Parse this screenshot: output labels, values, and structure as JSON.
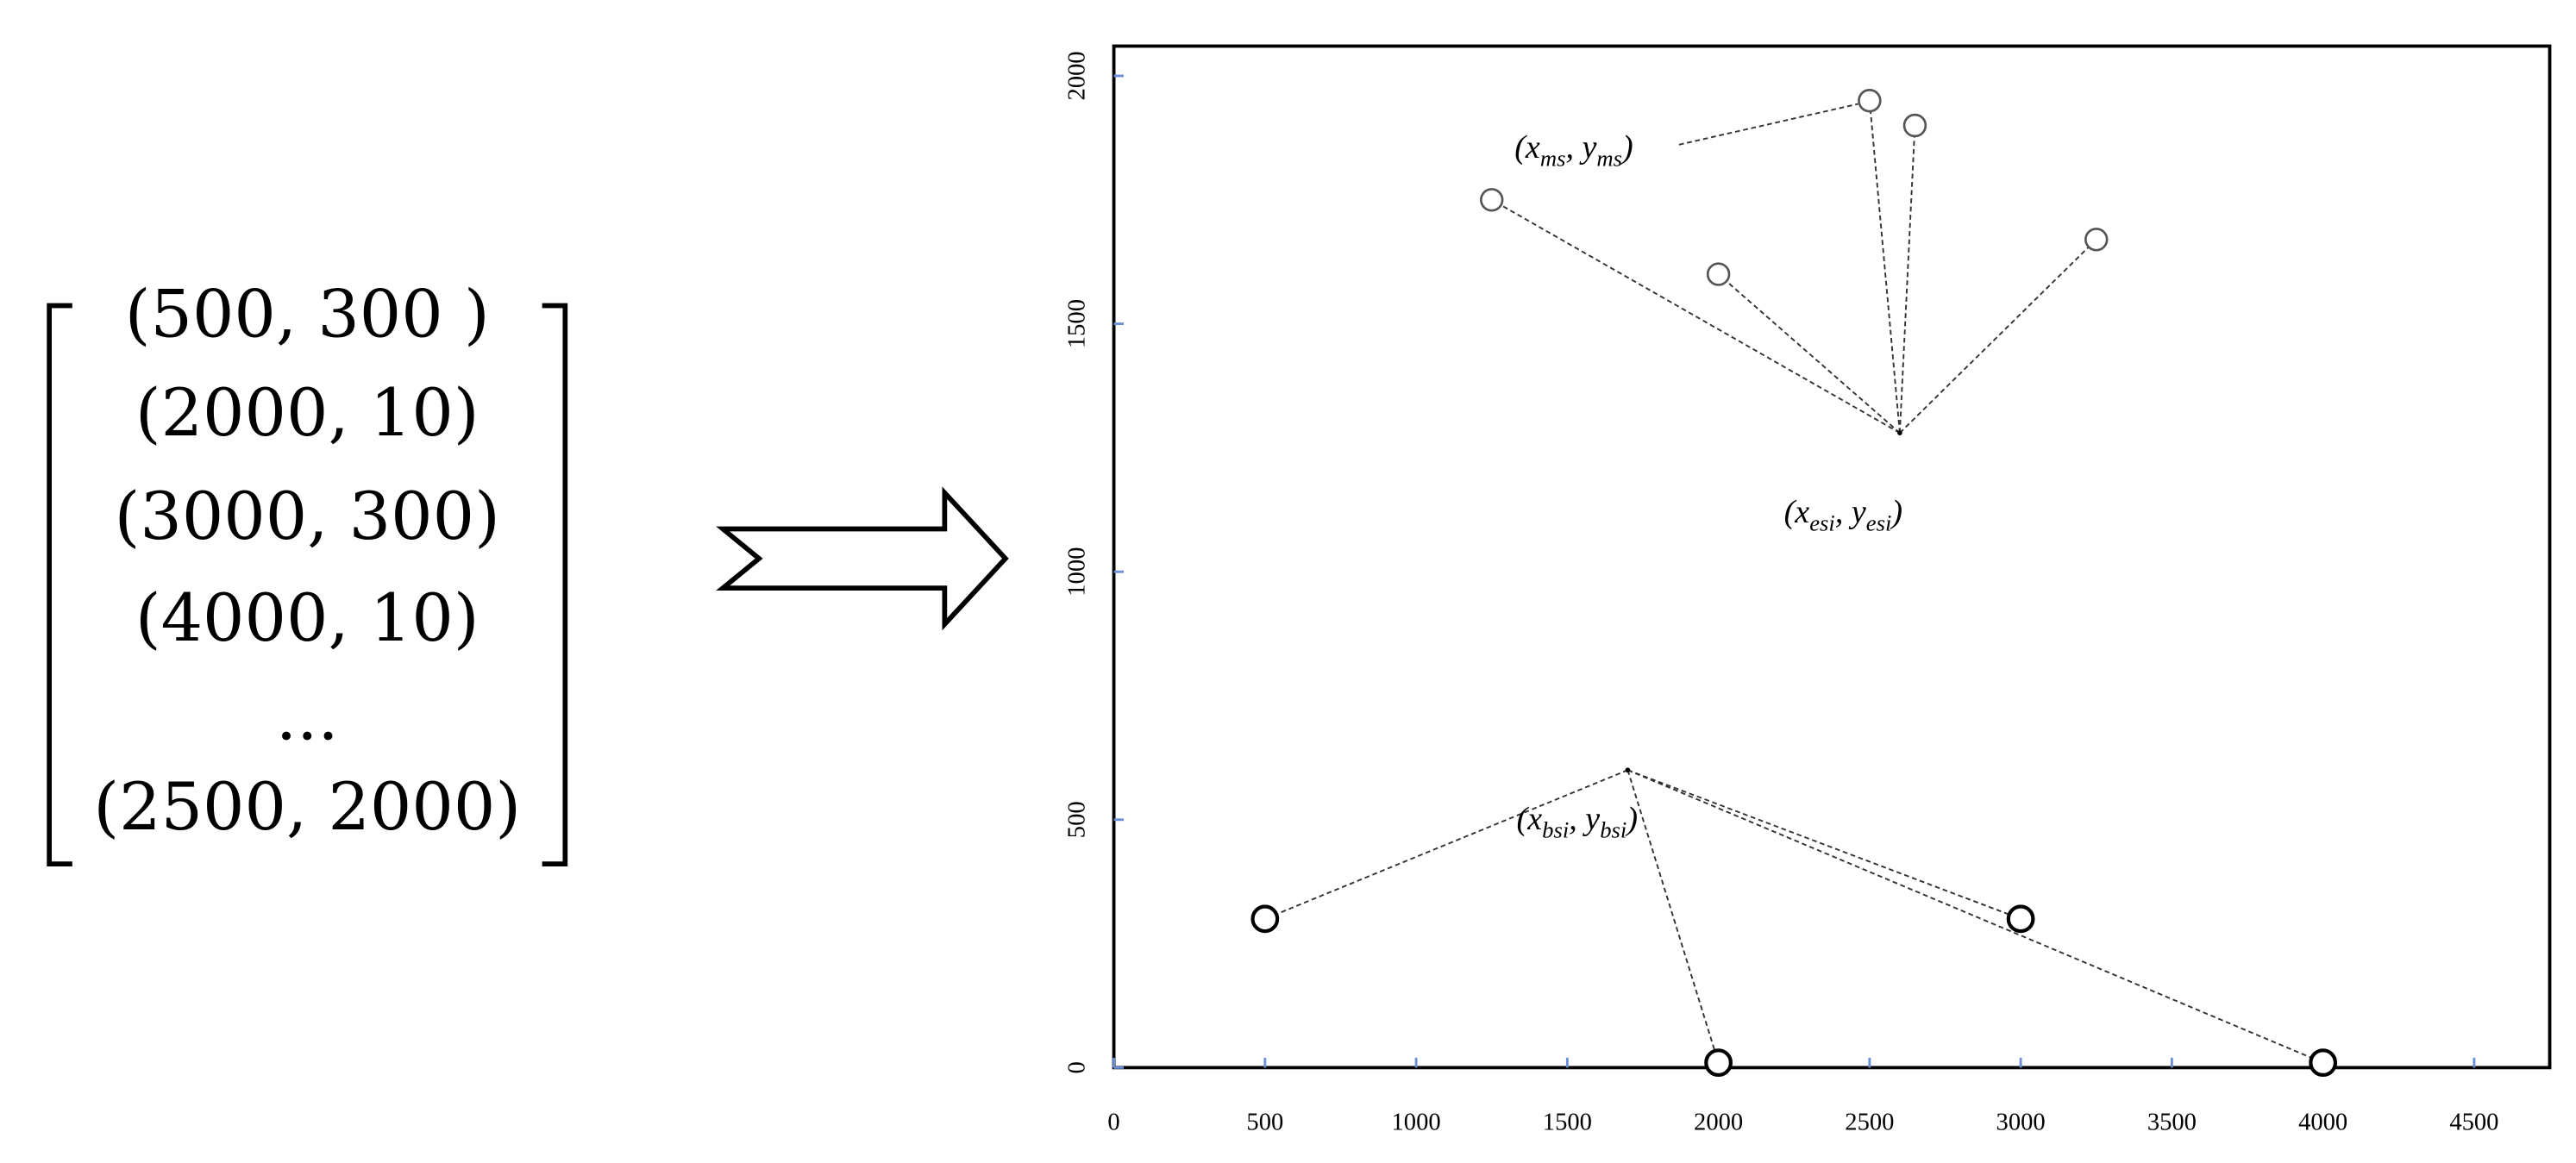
{
  "matrix": {
    "rows": [
      "(500, 300 )",
      "(2000, 10)",
      "(3000, 300)",
      "(4000, 10)",
      "...",
      "(2500, 2000)"
    ]
  },
  "chart_data": {
    "type": "scatter",
    "xlim": [
      0,
      4750
    ],
    "ylim": [
      0,
      2060
    ],
    "xticks": [
      0,
      500,
      1000,
      1500,
      2000,
      2500,
      3000,
      3500,
      4000,
      4500
    ],
    "yticks": [
      0,
      500,
      1000,
      1500,
      2000
    ],
    "series": [
      {
        "color": "#000000",
        "x": [
          500,
          2000,
          3000,
          4000
        ],
        "values": [
          300,
          10,
          300,
          10
        ]
      },
      {
        "color": "#555555",
        "x": [
          1250,
          2000,
          2500,
          2650,
          3250
        ],
        "values": [
          1750,
          1600,
          1950,
          1900,
          1670
        ]
      }
    ],
    "hubs": [
      {
        "x": 1700,
        "y": 600,
        "segments": [
          "(x",
          "bsi",
          ", y",
          "bsi",
          ")"
        ]
      },
      {
        "x": 2600,
        "y": 1280,
        "segments": [
          "(x",
          "esi",
          ", y",
          "esi",
          ")"
        ]
      }
    ],
    "ms_label": {
      "segments": [
        "(x",
        "ms",
        ", y",
        "ms",
        ")"
      ]
    }
  }
}
